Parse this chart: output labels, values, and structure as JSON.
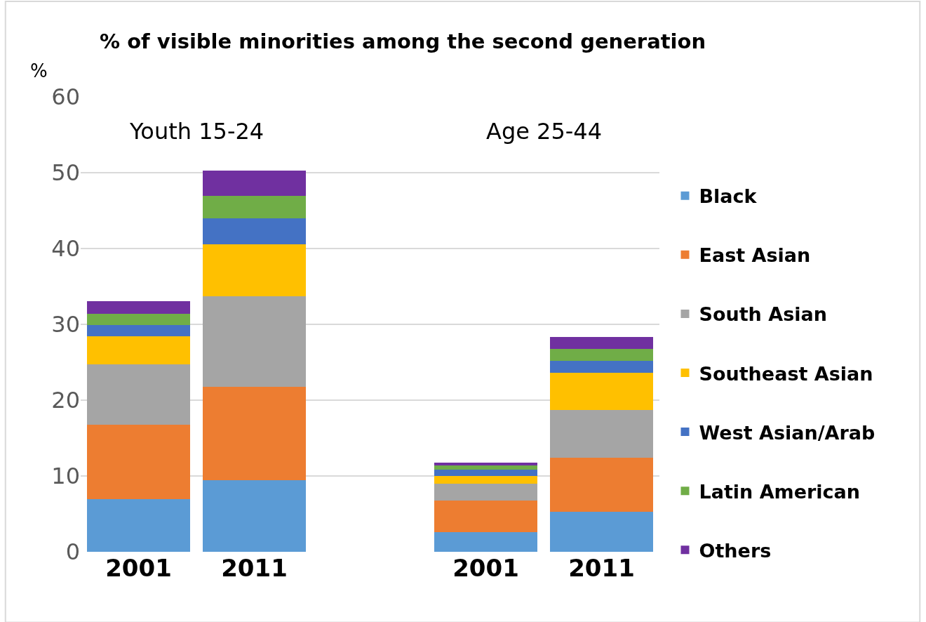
{
  "chart_data": {
    "type": "bar",
    "stacked": true,
    "title": "% of visible minorities among the second generation",
    "ylabel": "%",
    "categories": [
      "2001",
      "2011",
      null,
      "2001",
      "2011"
    ],
    "annotations": [
      "Youth 15-24",
      "Age 25-44"
    ],
    "series": [
      {
        "name": "Black",
        "color": "#5b9bd5",
        "values": [
          6.9,
          9.4,
          null,
          2.6,
          5.3
        ]
      },
      {
        "name": "East Asian",
        "color": "#ed7d31",
        "values": [
          9.9,
          12.4,
          null,
          4.2,
          7.1
        ]
      },
      {
        "name": "South Asian",
        "color": "#a5a5a5",
        "values": [
          7.9,
          11.9,
          null,
          2.2,
          6.3
        ]
      },
      {
        "name": "Southeast Asian",
        "color": "#ffc000",
        "values": [
          3.7,
          6.9,
          null,
          1.0,
          4.9
        ]
      },
      {
        "name": "West Asian/Arab",
        "color": "#4472c4",
        "values": [
          1.5,
          3.4,
          null,
          0.8,
          1.6
        ]
      },
      {
        "name": "Latin American",
        "color": "#70ad47",
        "values": [
          1.5,
          2.9,
          null,
          0.6,
          1.6
        ]
      },
      {
        "name": "Others",
        "color": "#7030a0",
        "values": [
          1.7,
          3.4,
          null,
          0.4,
          1.5
        ]
      }
    ],
    "ylim": [
      0,
      60
    ],
    "yticks": [
      0,
      10,
      20,
      30,
      40,
      50,
      60
    ],
    "grid": "y",
    "legend": "right"
  }
}
